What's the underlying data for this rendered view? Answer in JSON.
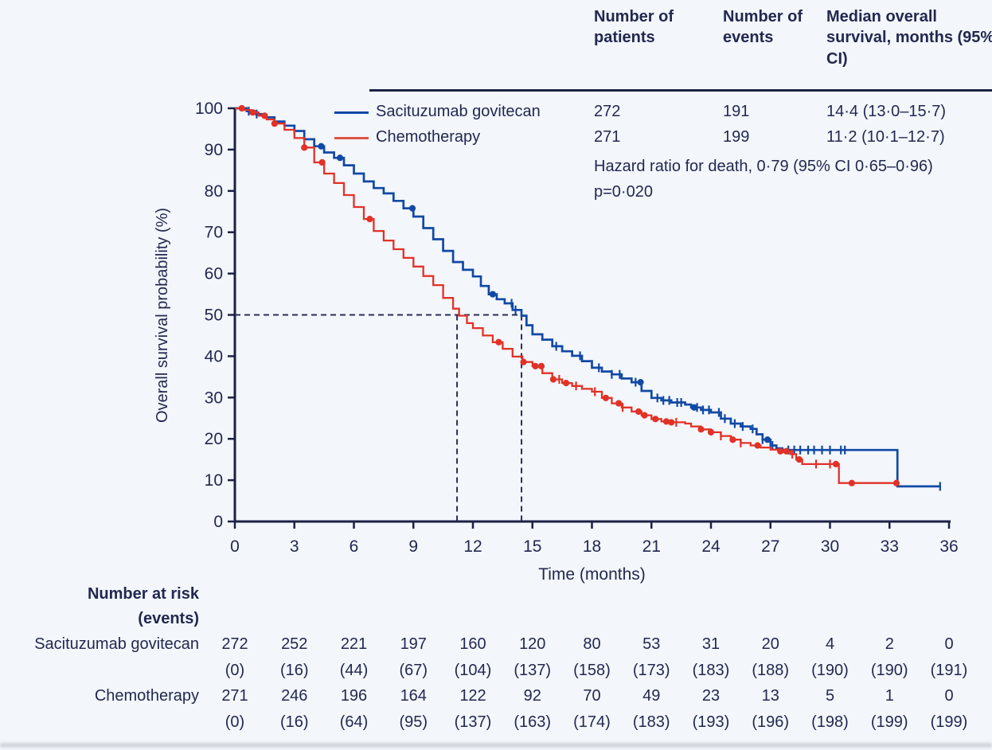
{
  "colors": {
    "background": "#f3f6fb",
    "text": "#232850",
    "axis": "#1c2145",
    "dashed": "#2a3057",
    "sg_blue": "#1149a4",
    "ct_red": "#e23127",
    "bottom_strip": "#c7cbd1"
  },
  "header_table": {
    "col_patients": "Number of patients",
    "col_events": "Number of events",
    "col_median": "Median overall survival, months (95% CI)",
    "hazard_ratio_line": "Hazard ratio for death, 0·79 (95% CI 0·65–0·96)",
    "p_value_line": "p=0·020"
  },
  "legend": {
    "rows": [
      {
        "name": "Sacituzumab govitecan",
        "patients": "272",
        "events": "191",
        "median": "14·4 (13·0–15·7)"
      },
      {
        "name": "Chemotherapy",
        "patients": "271",
        "events": "199",
        "median": "11·2 (10·1–12·7)"
      }
    ]
  },
  "axes": {
    "y_title": "Overall survival probability (%)",
    "x_title": "Time (months)",
    "y_ticks": [
      0,
      10,
      20,
      30,
      40,
      50,
      60,
      70,
      80,
      90,
      100
    ],
    "x_ticks": [
      0,
      3,
      6,
      9,
      12,
      15,
      18,
      21,
      24,
      27,
      30,
      33,
      36
    ]
  },
  "chart_data": {
    "type": "line",
    "subtype": "kaplan-meier-step",
    "title": "",
    "xlabel": "Time (months)",
    "ylabel": "Overall survival probability (%)",
    "xlim": [
      0,
      36
    ],
    "ylim": [
      0,
      100
    ],
    "grid": false,
    "legend_position": "top-left-inside",
    "median_markers": {
      "y": 50,
      "x_values": [
        11.2,
        14.45
      ]
    },
    "annotations": [
      "Hazard ratio for death, 0·79 (95% CI 0·65–0·96)",
      "p=0·020"
    ],
    "series": [
      {
        "name": "Sacituzumab govitecan",
        "color": "#1149a4",
        "median_months": 14.4,
        "points": [
          [
            0,
            100
          ],
          [
            0.6,
            99.3
          ],
          [
            1,
            98.6
          ],
          [
            1.5,
            97.8
          ],
          [
            2,
            96.8
          ],
          [
            2.5,
            95.8
          ],
          [
            3,
            94.5
          ],
          [
            3.5,
            92.5
          ],
          [
            4,
            90.8
          ],
          [
            4.5,
            89.3
          ],
          [
            5,
            88
          ],
          [
            5.5,
            86.2
          ],
          [
            6,
            84.2
          ],
          [
            6.5,
            82.3
          ],
          [
            7,
            80.7
          ],
          [
            7.5,
            79.4
          ],
          [
            8,
            77.6
          ],
          [
            8.5,
            75.8
          ],
          [
            9,
            73.8
          ],
          [
            9.5,
            71
          ],
          [
            10,
            68.3
          ],
          [
            10.5,
            65.5
          ],
          [
            11,
            62.8
          ],
          [
            11.5,
            60.9
          ],
          [
            12,
            59.3
          ],
          [
            12.4,
            57
          ],
          [
            12.8,
            55
          ],
          [
            13.2,
            53.8
          ],
          [
            13.6,
            52.8
          ],
          [
            14,
            51.2
          ],
          [
            14.45,
            49.8
          ],
          [
            14.7,
            47.5
          ],
          [
            15,
            45.3
          ],
          [
            15.5,
            44
          ],
          [
            16,
            42.4
          ],
          [
            16.5,
            41.2
          ],
          [
            17,
            40.1
          ],
          [
            17.5,
            38.8
          ],
          [
            18,
            37.2
          ],
          [
            18.5,
            36.3
          ],
          [
            19,
            35.6
          ],
          [
            19.5,
            34.6
          ],
          [
            20,
            33.7
          ],
          [
            20.5,
            31.6
          ],
          [
            21,
            29.9
          ],
          [
            21.5,
            29.3
          ],
          [
            22,
            28.8
          ],
          [
            22.7,
            28.3
          ],
          [
            23,
            27.6
          ],
          [
            23.5,
            27
          ],
          [
            24,
            26.4
          ],
          [
            24.5,
            24.9
          ],
          [
            25,
            23.7
          ],
          [
            25.5,
            23
          ],
          [
            26,
            22.4
          ],
          [
            26.3,
            21.1
          ],
          [
            26.6,
            19.8
          ],
          [
            27,
            18.4
          ],
          [
            27.3,
            17.7
          ],
          [
            27.6,
            17.3
          ],
          [
            33.35,
            17.3
          ],
          [
            33.4,
            8.5
          ],
          [
            35.6,
            8.5
          ]
        ],
        "censor_ticks": [
          0.7,
          1.1,
          3.0,
          13.95,
          14.15,
          16.2,
          17.4,
          18.35,
          19.0,
          19.4,
          20.2,
          21.3,
          21.6,
          21.9,
          22.3,
          22.5,
          23.3,
          23.6,
          23.9,
          24.4,
          24.7,
          25.2,
          25.6,
          26.1,
          26.6,
          27.1,
          27.9,
          28.2,
          28.5,
          28.9,
          29.2,
          29.6,
          30.0,
          30.55,
          30.75,
          35.55
        ],
        "censor_dots": [
          4.35,
          5.3,
          8.95,
          13.0,
          20.45,
          23.15,
          26.85
        ]
      },
      {
        "name": "Chemotherapy",
        "color": "#e23127",
        "median_months": 11.2,
        "points": [
          [
            0,
            100
          ],
          [
            0.4,
            99.6
          ],
          [
            0.8,
            99
          ],
          [
            1.2,
            98.2
          ],
          [
            1.6,
            97.3
          ],
          [
            2,
            96.3
          ],
          [
            2.5,
            94.8
          ],
          [
            3,
            92.8
          ],
          [
            3.5,
            90.5
          ],
          [
            4,
            86.9
          ],
          [
            4.5,
            84.2
          ],
          [
            5,
            81.9
          ],
          [
            5.5,
            79
          ],
          [
            6,
            76.1
          ],
          [
            6.5,
            73.2
          ],
          [
            7,
            70.3
          ],
          [
            7.5,
            68
          ],
          [
            8,
            65.9
          ],
          [
            8.5,
            63.8
          ],
          [
            9,
            61.7
          ],
          [
            9.5,
            59.4
          ],
          [
            10,
            57.2
          ],
          [
            10.5,
            54.1
          ],
          [
            11,
            51.5
          ],
          [
            11.3,
            49.8
          ],
          [
            11.7,
            48
          ],
          [
            12,
            46.8
          ],
          [
            12.5,
            45
          ],
          [
            13,
            43.4
          ],
          [
            13.5,
            41.8
          ],
          [
            14,
            39.9
          ],
          [
            14.5,
            38.6
          ],
          [
            15,
            37.6
          ],
          [
            15.5,
            35.9
          ],
          [
            16,
            34.4
          ],
          [
            16.5,
            33.5
          ],
          [
            17,
            32.8
          ],
          [
            17.5,
            32.1
          ],
          [
            18,
            31.4
          ],
          [
            18.5,
            29.9
          ],
          [
            19,
            28.6
          ],
          [
            19.5,
            27.6
          ],
          [
            20,
            26.6
          ],
          [
            20.5,
            25.7
          ],
          [
            21,
            24.8
          ],
          [
            21.5,
            24.2
          ],
          [
            22,
            24
          ],
          [
            22.7,
            23.7
          ],
          [
            23,
            23
          ],
          [
            23.5,
            22.3
          ],
          [
            24,
            21.6
          ],
          [
            24.5,
            20.7
          ],
          [
            25,
            19.8
          ],
          [
            25.5,
            19
          ],
          [
            26,
            18.4
          ],
          [
            26.5,
            17.9
          ],
          [
            27,
            17.4
          ],
          [
            27.5,
            17
          ],
          [
            28,
            16.3
          ],
          [
            28.3,
            15
          ],
          [
            28.6,
            13.9
          ],
          [
            30.4,
            13.9
          ],
          [
            30.45,
            9.3
          ],
          [
            33.4,
            9.3
          ]
        ],
        "censor_ticks": [
          16.35,
          17.2,
          18.15,
          19.55,
          22.25,
          24.5,
          25.5,
          28.1,
          29.3,
          30.0
        ],
        "censor_dots": [
          0.35,
          0.9,
          1.5,
          2.0,
          3.5,
          4.4,
          6.8,
          13.3,
          14.55,
          15.15,
          15.45,
          16.05,
          16.7,
          18.7,
          19.35,
          20.35,
          20.65,
          21.2,
          21.75,
          22.0,
          23.5,
          24.0,
          25.1,
          26.35,
          27.5,
          27.8,
          28.45,
          30.3,
          31.1,
          33.35
        ]
      }
    ]
  },
  "risk_table": {
    "title_line1": "Number at risk",
    "title_line2": "(events)",
    "time_points": [
      0,
      3,
      6,
      9,
      12,
      15,
      18,
      21,
      24,
      27,
      30,
      33,
      36
    ],
    "rows": [
      {
        "name": "Sacituzumab govitecan",
        "at_risk": [
          272,
          252,
          221,
          197,
          160,
          120,
          80,
          53,
          31,
          20,
          4,
          2,
          0
        ],
        "events": [
          0,
          16,
          44,
          67,
          104,
          137,
          158,
          173,
          183,
          188,
          190,
          190,
          191
        ]
      },
      {
        "name": "Chemotherapy",
        "at_risk": [
          271,
          246,
          196,
          164,
          122,
          92,
          70,
          49,
          23,
          13,
          5,
          1,
          0
        ],
        "events": [
          0,
          16,
          64,
          95,
          137,
          163,
          174,
          183,
          193,
          196,
          198,
          199,
          199
        ]
      }
    ]
  }
}
